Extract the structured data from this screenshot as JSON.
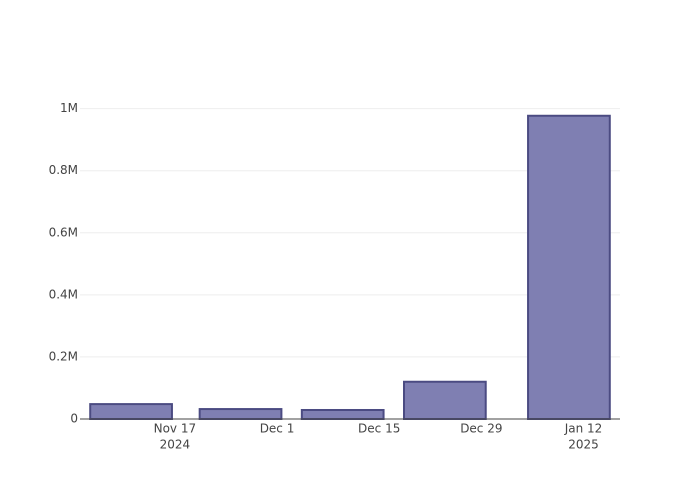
{
  "chart_data": {
    "type": "bar",
    "x": [
      "2024-11-11",
      "2024-11-26",
      "2024-12-10",
      "2024-12-24",
      "2025-01-10"
    ],
    "values": [
      48000,
      32000,
      29000,
      120000,
      977000
    ],
    "color": "#7f7fb2",
    "line_color": "#4b4b82",
    "xlim": [
      "2024-11-04",
      "2025-01-17"
    ],
    "xticks": [
      {
        "value": "2024-11-17",
        "label": "Nov 17",
        "year": "2024"
      },
      {
        "value": "2024-12-01",
        "label": "Dec 1"
      },
      {
        "value": "2024-12-15",
        "label": "Dec 15"
      },
      {
        "value": "2024-12-29",
        "label": "Dec 29"
      },
      {
        "value": "2025-01-12",
        "label": "Jan 12",
        "year": "2025"
      }
    ],
    "ylim": [
      0,
      1060000
    ],
    "yticks": [
      0,
      {
        "value": 200000,
        "label": "0.2M"
      },
      {
        "value": 400000,
        "label": "0.4M"
      },
      {
        "value": 600000,
        "label": "0.6M"
      },
      {
        "value": 800000,
        "label": "0.8M"
      },
      {
        "value": 1000000,
        "label": "1M"
      }
    ],
    "grid": true
  }
}
